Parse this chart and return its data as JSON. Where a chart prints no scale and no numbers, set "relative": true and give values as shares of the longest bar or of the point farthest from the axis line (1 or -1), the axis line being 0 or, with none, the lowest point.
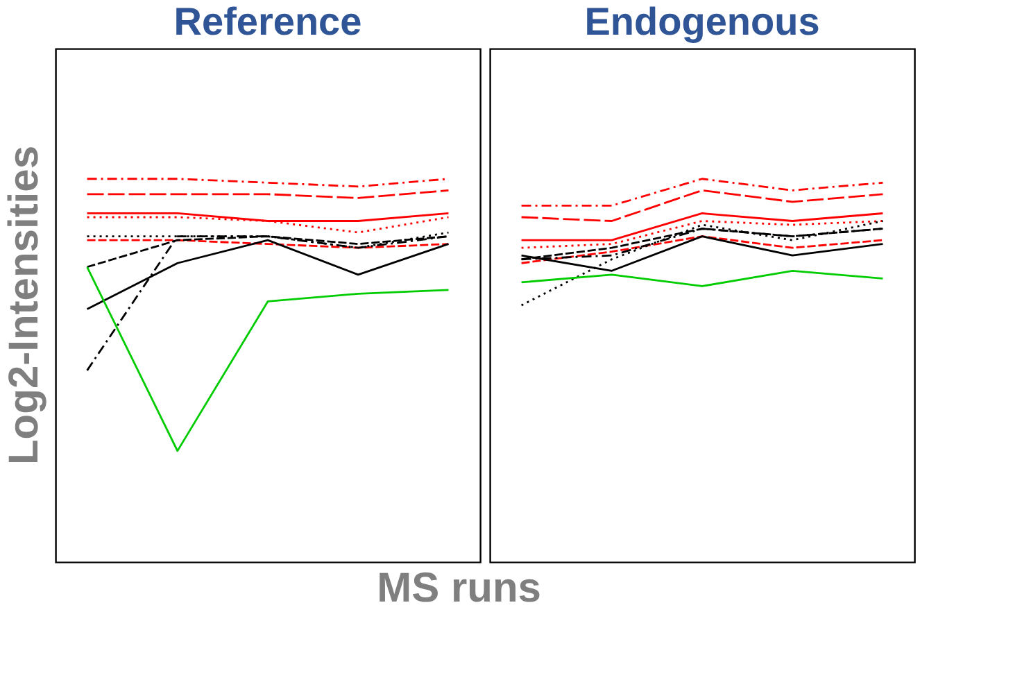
{
  "chart_data": [
    {
      "type": "line",
      "title": "Reference",
      "ylabel": "Log2-Intensities",
      "xlabel": "MS runs",
      "relative": true,
      "marker": "none",
      "categories": [
        null,
        null,
        null,
        null,
        null
      ],
      "series": [
        {
          "color": "#ff0000",
          "line_style": "dashdot",
          "values": [
            1,
            1,
            0.99,
            0.98,
            1
          ]
        },
        {
          "color": "#ff0000",
          "line_style": "longdash",
          "values": [
            0.96,
            0.96,
            0.96,
            0.95,
            0.97
          ]
        },
        {
          "color": "#ff0000",
          "line_style": "solid",
          "values": [
            0.91,
            0.91,
            0.89,
            0.89,
            0.91
          ]
        },
        {
          "color": "#ff0000",
          "line_style": "dotted",
          "values": [
            0.9,
            0.9,
            0.89,
            0.86,
            0.9
          ]
        },
        {
          "color": "#ff0000",
          "line_style": "dashed",
          "values": [
            0.84,
            0.84,
            0.83,
            0.82,
            0.83
          ]
        },
        {
          "color": "#000000",
          "line_style": "dotted",
          "values": [
            0.85,
            0.85,
            0.85,
            0.82,
            0.86
          ]
        },
        {
          "color": "#000000",
          "line_style": "dashed",
          "values": [
            0.77,
            0.84,
            0.85,
            0.83,
            0.85
          ]
        },
        {
          "color": "#000000",
          "line_style": "solid",
          "values": [
            0.66,
            0.78,
            0.84,
            0.75,
            0.83
          ]
        },
        {
          "color": "#000000",
          "line_style": "dashdot",
          "values": [
            0.5,
            0.85,
            0.85,
            0.82,
            0.85
          ]
        },
        {
          "color": "#00cc00",
          "line_style": "solid",
          "values": [
            0.77,
            0.29,
            0.68,
            0.7,
            0.71
          ]
        }
      ]
    },
    {
      "type": "line",
      "title": "Endogenous",
      "relative": true,
      "marker": "none",
      "categories": [
        null,
        null,
        null,
        null,
        null
      ],
      "series": [
        {
          "color": "#ff0000",
          "line_style": "dashdot",
          "values": [
            0.93,
            0.93,
            1,
            0.97,
            0.99
          ]
        },
        {
          "color": "#ff0000",
          "line_style": "longdash",
          "values": [
            0.9,
            0.89,
            0.97,
            0.94,
            0.96
          ]
        },
        {
          "color": "#ff0000",
          "line_style": "solid",
          "values": [
            0.84,
            0.84,
            0.91,
            0.89,
            0.91
          ]
        },
        {
          "color": "#ff0000",
          "line_style": "dotted",
          "values": [
            0.82,
            0.83,
            0.89,
            0.88,
            0.89
          ]
        },
        {
          "color": "#ff0000",
          "line_style": "dashed",
          "values": [
            0.78,
            0.81,
            0.85,
            0.82,
            0.84
          ]
        },
        {
          "color": "#000000",
          "line_style": "dashed",
          "values": [
            0.79,
            0.82,
            0.87,
            0.85,
            0.87
          ]
        },
        {
          "color": "#000000",
          "line_style": "dashdot",
          "values": [
            0.79,
            0.8,
            0.87,
            0.85,
            0.87
          ]
        },
        {
          "color": "#000000",
          "line_style": "dotted",
          "values": [
            0.67,
            0.79,
            0.88,
            0.84,
            0.89
          ]
        },
        {
          "color": "#000000",
          "line_style": "solid",
          "values": [
            0.8,
            0.76,
            0.85,
            0.8,
            0.83
          ]
        },
        {
          "color": "#00cc00",
          "line_style": "solid",
          "values": [
            0.73,
            0.75,
            0.72,
            0.76,
            0.74
          ]
        }
      ]
    }
  ]
}
